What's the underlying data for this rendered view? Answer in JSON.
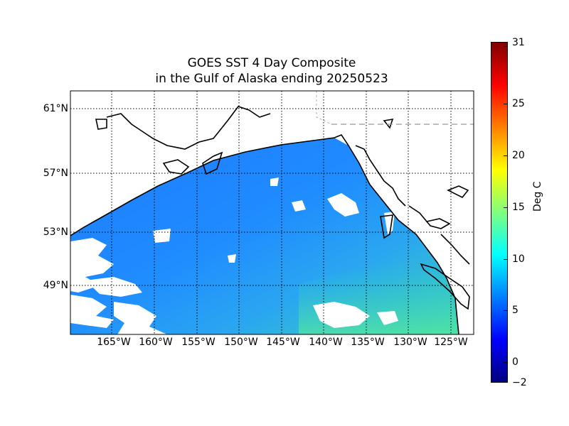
{
  "title": {
    "line1": "GOES SST 4 Day Composite",
    "line2": "in the Gulf of Alaska ending 20250523"
  },
  "map": {
    "lat_labels": [
      "61°N",
      "57°N",
      "53°N",
      "49°N"
    ],
    "lon_labels": [
      "165°W",
      "160°W",
      "155°W",
      "150°W",
      "145°W",
      "140°W",
      "135°W",
      "130°W",
      "125°W"
    ]
  },
  "colorbar": {
    "label": "Deg C",
    "min": -2,
    "max": 31,
    "ticks": [
      "31",
      "25",
      "20",
      "15",
      "10",
      "5",
      "0",
      "−2"
    ],
    "colors": [
      "#00007f",
      "#0000ff",
      "#0080ff",
      "#00ffff",
      "#7fff7f",
      "#ffff00",
      "#ff8000",
      "#ff0000",
      "#7f0000"
    ]
  }
}
